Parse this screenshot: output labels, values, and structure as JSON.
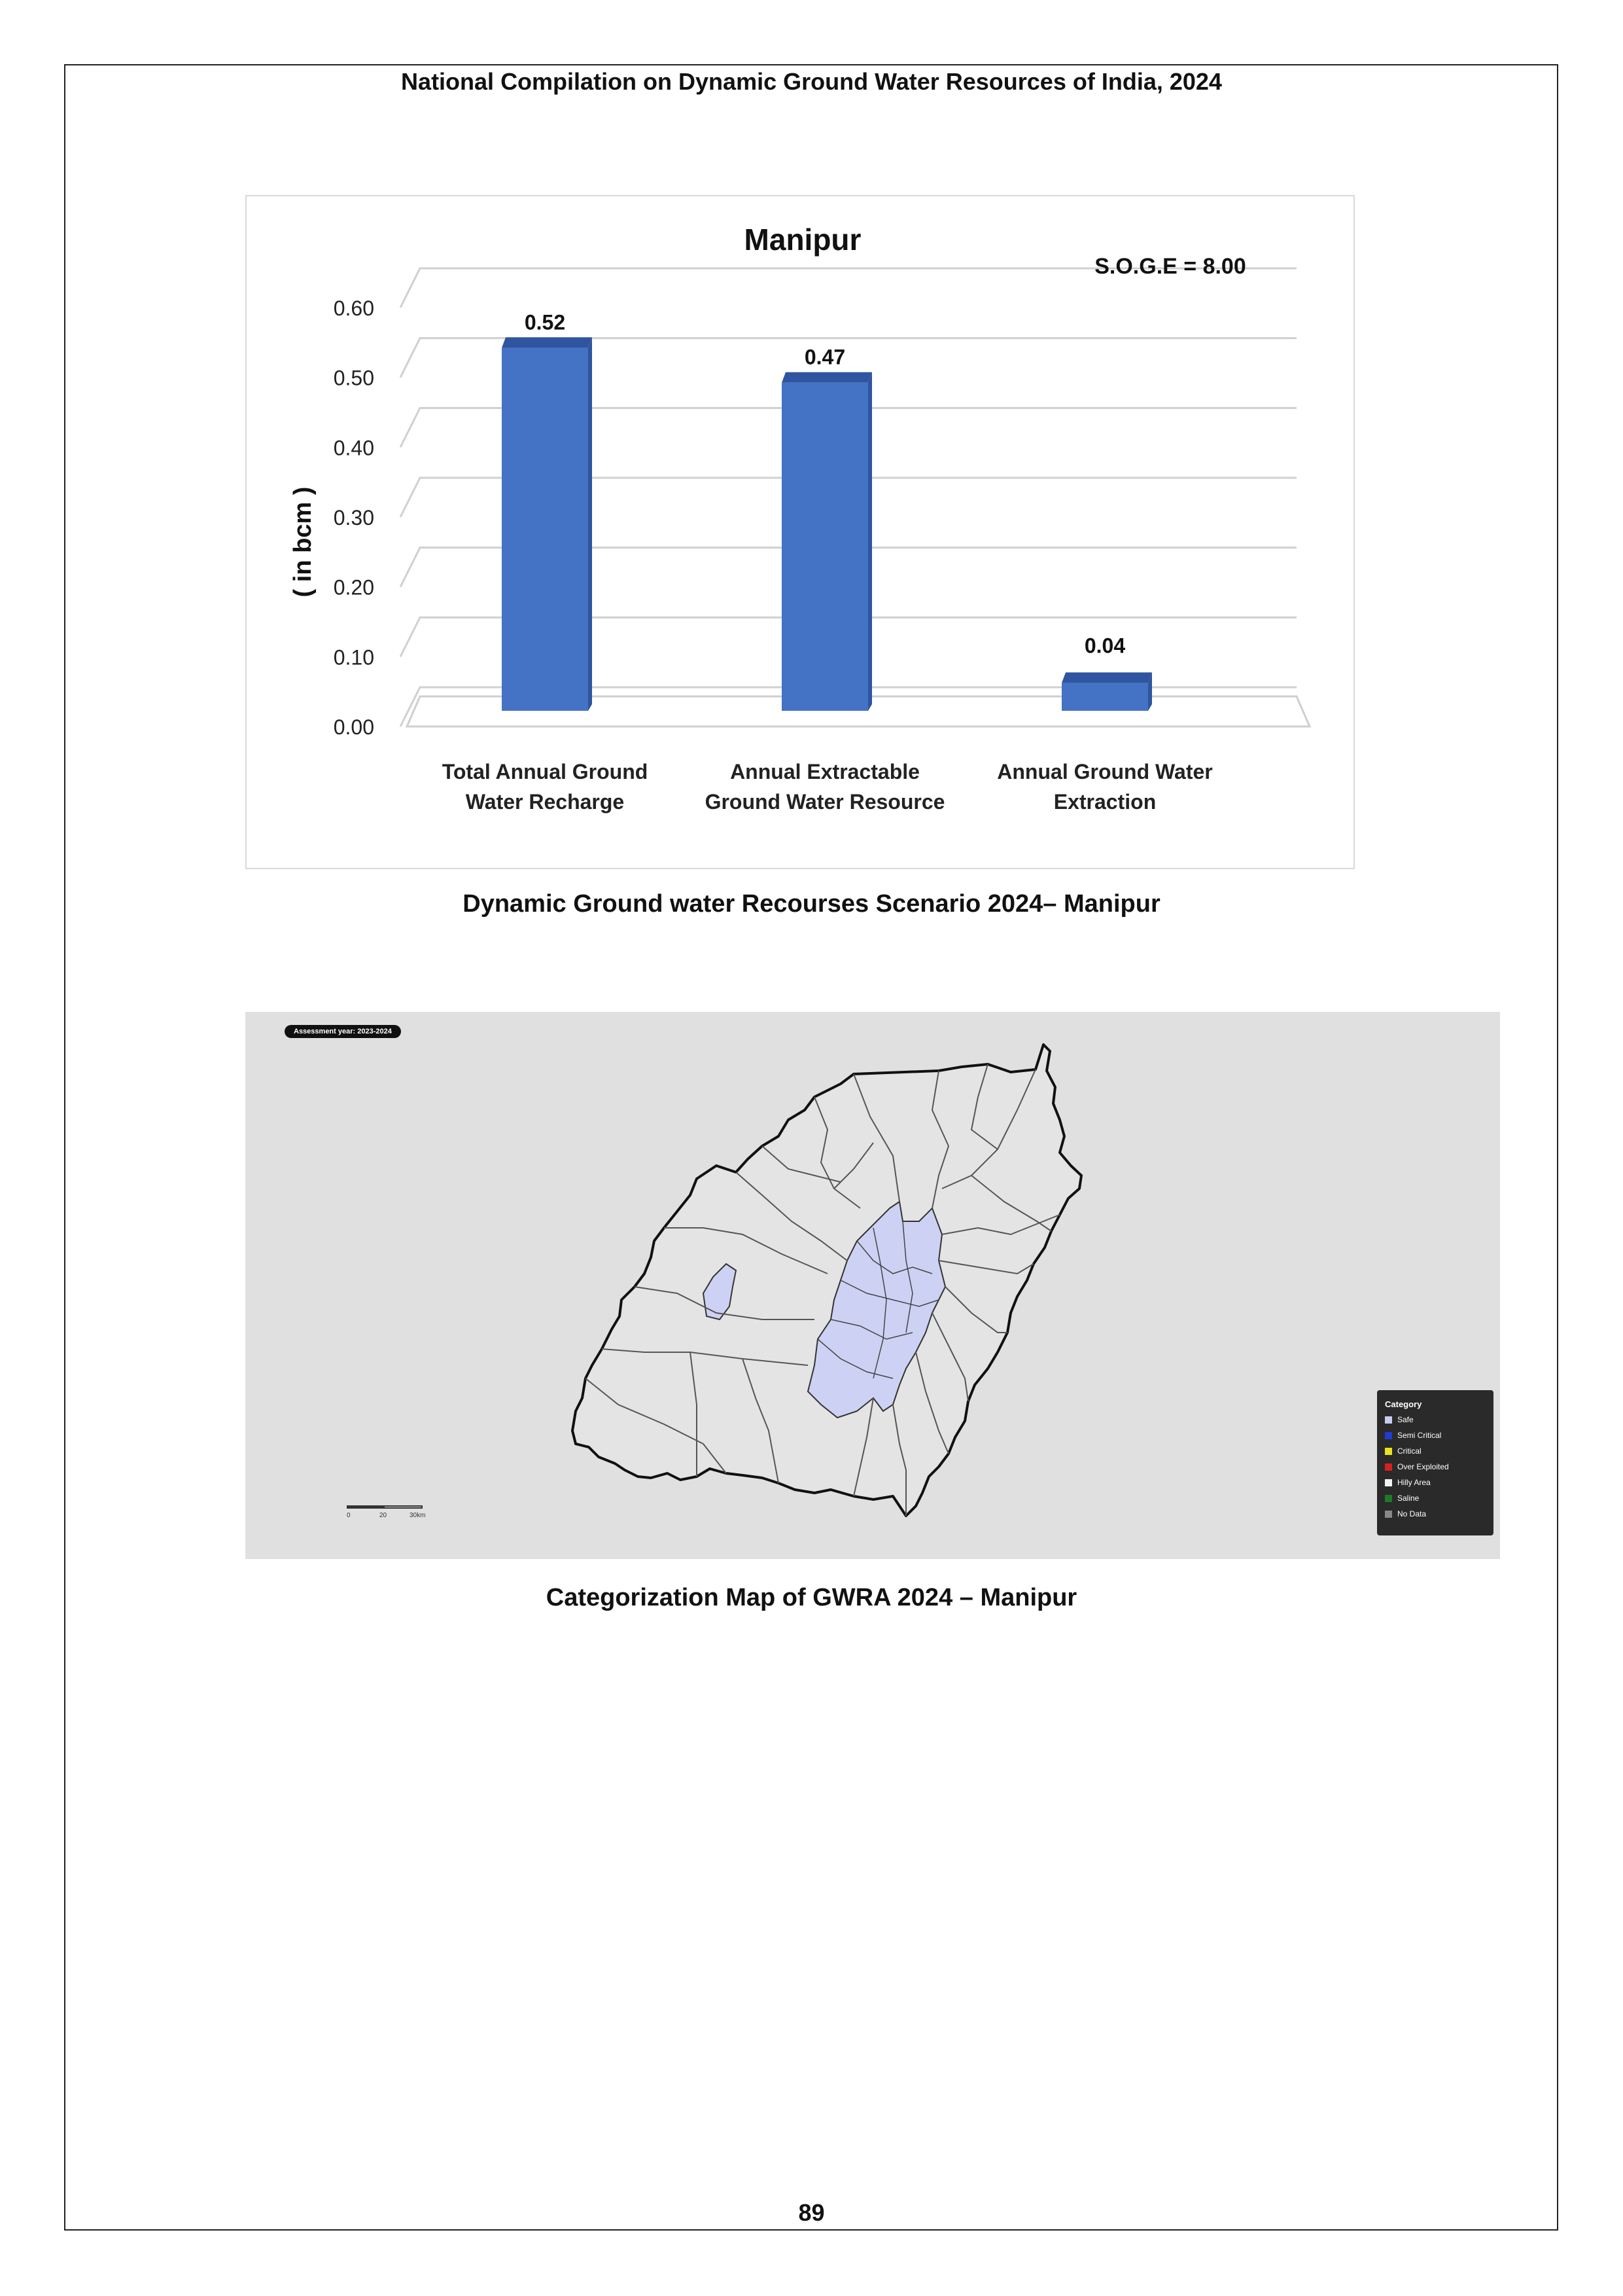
{
  "header": {
    "title": "National Compilation on Dynamic Ground Water Resources of India, 2024"
  },
  "chart_data": {
    "type": "bar",
    "title": "Manipur",
    "annotation": "S.O.G.E = 8.00",
    "ylabel": "( in bcm )",
    "xlabel": "",
    "ylim": [
      0,
      0.6
    ],
    "y_ticks": [
      "0.00",
      "0.10",
      "0.20",
      "0.30",
      "0.40",
      "0.50",
      "0.60"
    ],
    "categories": [
      [
        "Total Annual  Ground",
        "Water Recharge"
      ],
      [
        "Annual Extractable",
        "Ground Water Resource"
      ],
      [
        "Annual Ground Water",
        "Extraction"
      ]
    ],
    "values": [
      0.52,
      0.47,
      0.04
    ],
    "data_labels": [
      "0.52",
      "0.47",
      "0.04"
    ],
    "bar_color": "#4472c4",
    "bar_top_color": "#2f55a0",
    "grid": true
  },
  "chart_caption": "Dynamic Ground water Recourses Scenario 2024– Manipur",
  "map": {
    "assessment_year": "Assessment year: 2023-2024",
    "scale_labels": [
      "0",
      "20",
      "30km"
    ],
    "legend": {
      "title": "Category",
      "items": [
        {
          "label": "Safe",
          "color": "#c9cdf0"
        },
        {
          "label": "Semi Critical",
          "color": "#1f3ad6"
        },
        {
          "label": "Critical",
          "color": "#e8e31a"
        },
        {
          "label": "Over Exploited",
          "color": "#d62020"
        },
        {
          "label": "Hilly Area",
          "color": "#f2f2f2"
        },
        {
          "label": "Saline",
          "color": "#1f7a28"
        },
        {
          "label": "No Data",
          "color": "#888888"
        }
      ]
    },
    "colors": {
      "safe": "#cdd1f3",
      "hilly": "#e4e4e4",
      "outline": "#111111"
    }
  },
  "map_caption": "Categorization Map of GWRA 2024 – Manipur",
  "page_number": "89"
}
